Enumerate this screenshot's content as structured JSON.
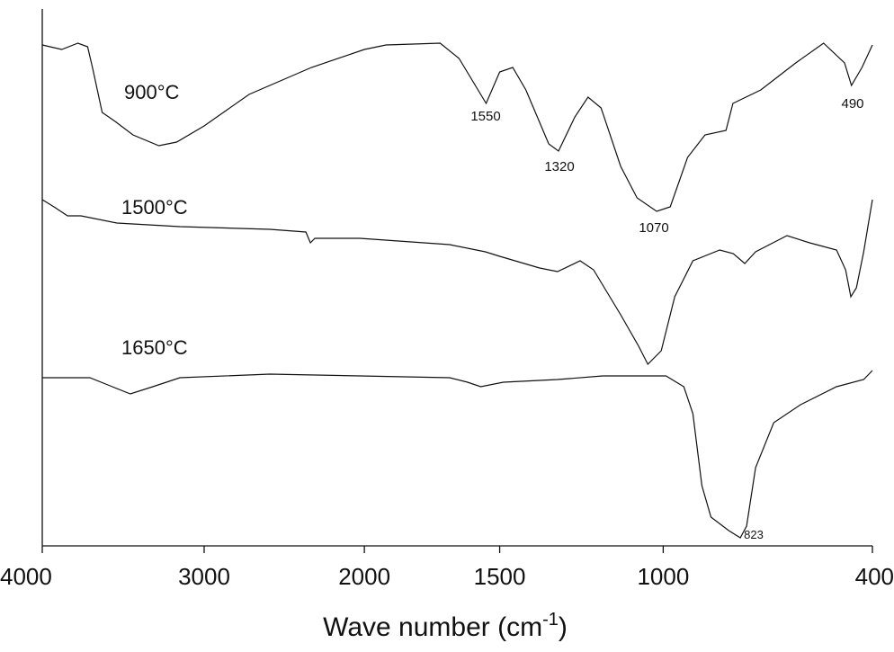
{
  "chart_data": {
    "type": "line",
    "xlabel": {
      "text": "Wave number (cm",
      "sup": "-1",
      "close": ")"
    },
    "xlim": [
      4000,
      400
    ],
    "xticks": [
      4000,
      3000,
      2000,
      1500,
      1000,
      400
    ],
    "ylim": [
      0,
      600
    ],
    "series": [
      {
        "name": "900°C",
        "color": "#111111",
        "x": [
          4000,
          3880,
          3780,
          3720,
          3690,
          3630,
          3550,
          3440,
          3280,
          3170,
          3000,
          2720,
          2330,
          2000,
          1920,
          1720,
          1650,
          1580,
          1550,
          1500,
          1460,
          1420,
          1350,
          1320,
          1270,
          1230,
          1190,
          1130,
          1080,
          1020,
          980,
          930,
          880,
          820,
          800,
          720,
          670,
          620,
          540,
          480,
          460,
          430,
          400
        ],
        "values": [
          557,
          552,
          559,
          555,
          532,
          482,
          472,
          457,
          445,
          449,
          467,
          502,
          532,
          552,
          557,
          559,
          542,
          507,
          492,
          527,
          532,
          507,
          447,
          439,
          477,
          499,
          487,
          422,
          387,
          372,
          377,
          432,
          457,
          462,
          492,
          507,
          522,
          537,
          559,
          537,
          512,
          532,
          557
        ]
      },
      {
        "name": "1500°C",
        "color": "#111111",
        "x": [
          4000,
          3928,
          3844,
          3761,
          3539,
          3150,
          2590,
          2365,
          2337,
          2309,
          2028,
          1685,
          1553,
          1500,
          1378,
          1323,
          1254,
          1213,
          1130,
          1075,
          1047,
          1006,
          967,
          915,
          838,
          799,
          766,
          735,
          645,
          580,
          503,
          477,
          462,
          446,
          425,
          400
        ],
        "values": [
          385,
          377,
          367,
          367,
          359,
          355,
          352,
          349,
          337,
          342,
          342,
          335,
          327,
          322,
          309,
          305,
          317,
          307,
          257,
          222,
          202,
          217,
          277,
          317,
          329,
          325,
          314,
          327,
          345,
          337,
          329,
          307,
          277,
          287,
          327,
          385
        ]
      },
      {
        "name": "1650°C",
        "color": "#111111",
        "x": [
          4000,
          3706,
          3567,
          3456,
          3317,
          3150,
          2590,
          2028,
          1685,
          1619,
          1570,
          1489,
          1323,
          1185,
          1102,
          992,
          941,
          915,
          889,
          863,
          812,
          779,
          761,
          735,
          683,
          606,
          503,
          425,
          400
        ],
        "values": [
          187,
          187,
          177,
          169,
          177,
          187,
          191,
          189,
          187,
          182,
          177,
          182,
          185,
          189,
          189,
          189,
          177,
          147,
          67,
          32,
          17,
          9,
          22,
          87,
          137,
          157,
          177,
          185,
          195
        ]
      }
    ],
    "annotations": [
      "1550",
      "1320",
      "1070",
      "490",
      "823"
    ]
  }
}
